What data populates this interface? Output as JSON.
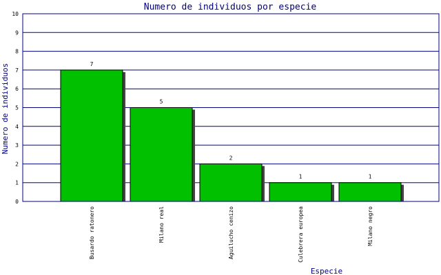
{
  "chart_data": {
    "type": "bar",
    "title": "Numero de individuos por especie",
    "xlabel": "Especie",
    "ylabel": "Numero de individuos",
    "categories": [
      "Busardo ratonero",
      "Milano real",
      "Aguilucho cenizo",
      "Culebrera europea",
      "Milano negro"
    ],
    "values": [
      7,
      5,
      2,
      1,
      1
    ],
    "value_labels": [
      "7",
      "5",
      "2",
      "1",
      "1"
    ],
    "ylim": [
      0,
      10
    ],
    "yticks": [
      "0",
      "1",
      "2",
      "3",
      "4",
      "5",
      "6",
      "7",
      "8",
      "9",
      "10"
    ],
    "grid": true,
    "colors": {
      "bar": "#00c000",
      "bar_border": "#000000",
      "shadow": "#444444",
      "gridline": "#000080",
      "text": "#000080"
    }
  }
}
